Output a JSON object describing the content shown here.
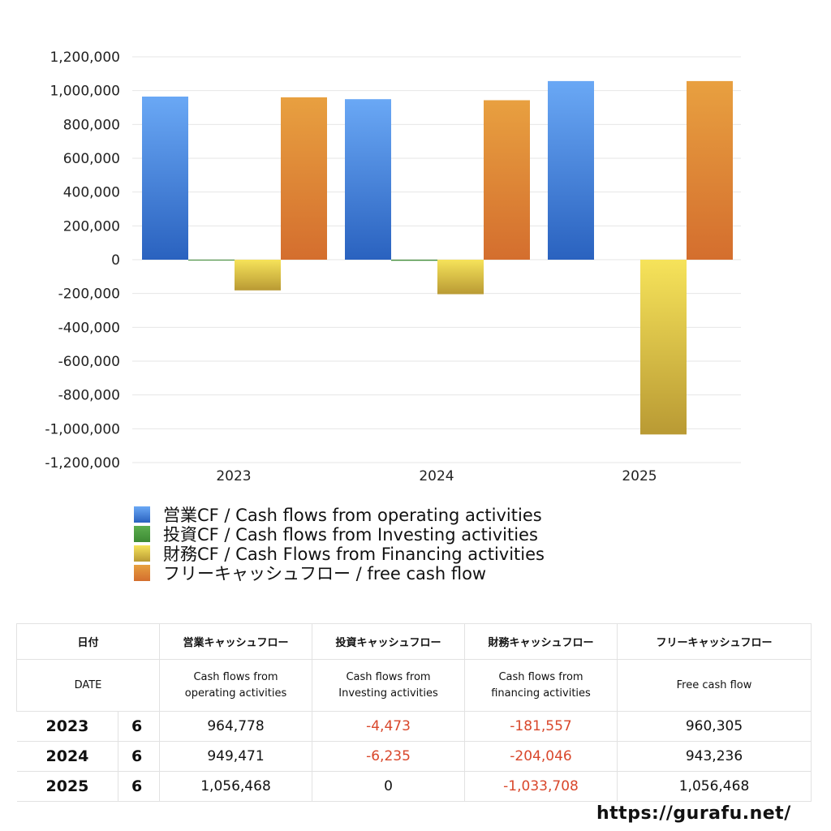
{
  "chart_data": {
    "type": "bar",
    "categories": [
      "2023",
      "2024",
      "2025"
    ],
    "series": [
      {
        "name": "営業CF / Cash flows from operating activities",
        "values": [
          964778,
          949471,
          1056468
        ],
        "color_top": "#6aa8f5",
        "color_bottom": "#2a62bf"
      },
      {
        "name": "投資CF / Cash flows from Investing activities",
        "values": [
          -4473,
          -6235,
          0
        ],
        "color_top": "#5cae4e",
        "color_bottom": "#3d8a34"
      },
      {
        "name": "財務CF / Cash Flows from Financing activities",
        "values": [
          -181557,
          -204046,
          -1033708
        ],
        "color_top": "#f6e35a",
        "color_bottom": "#b99a34"
      },
      {
        "name": "フリーキャッシュフロー / free cash flow",
        "values": [
          960305,
          943236,
          1056468
        ],
        "color_top": "#e8a040",
        "color_bottom": "#d46e2e"
      }
    ],
    "ylim": [
      -1200000,
      1200000
    ],
    "yticks": [
      "1,200,000",
      "1,000,000",
      "800,000",
      "600,000",
      "400,000",
      "200,000",
      "0",
      "-200,000",
      "-400,000",
      "-600,000",
      "-800,000",
      "-1,000,000",
      "-1,200,000"
    ],
    "grid": true,
    "legend": "bottom"
  },
  "table": {
    "header_ja": [
      "日付",
      "営業キャッシュフロー",
      "投資キャッシュフロー",
      "財務キャッシュフロー",
      "フリーキャッシュフロー"
    ],
    "header_en": [
      "DATE",
      "Cash flows from\noperating activities",
      "Cash flows from\nInvesting activities",
      "Cash flows from\nfinancing activities",
      "Free cash flow"
    ],
    "rows": [
      {
        "year": "2023",
        "month": "6",
        "op": "964,778",
        "inv": "-4,473",
        "fin": "-181,557",
        "free": "960,305"
      },
      {
        "year": "2024",
        "month": "6",
        "op": "949,471",
        "inv": "-6,235",
        "fin": "-204,046",
        "free": "943,236"
      },
      {
        "year": "2025",
        "month": "6",
        "op": "1,056,468",
        "inv": "0",
        "fin": "-1,033,708",
        "free": "1,056,468"
      }
    ]
  },
  "footer": {
    "url": "https://gurafu.net/"
  }
}
